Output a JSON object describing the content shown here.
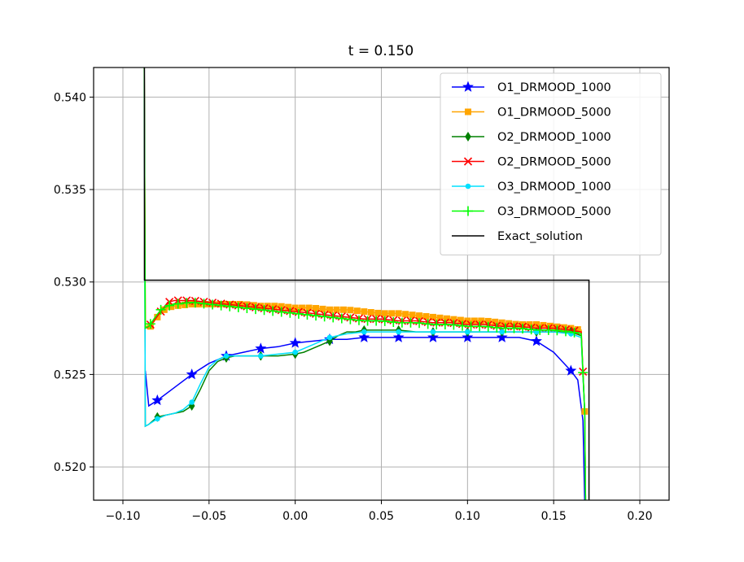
{
  "chart_data": {
    "type": "line",
    "title": "t = 0.150",
    "xlabel": "",
    "ylabel": "",
    "xlim": [
      -0.117,
      0.217
    ],
    "ylim": [
      0.5182,
      0.5416
    ],
    "xticks": [
      -0.1,
      -0.05,
      0.0,
      0.05,
      0.1,
      0.15,
      0.2
    ],
    "xtick_labels": [
      "−0.10",
      "−0.05",
      "0.00",
      "0.05",
      "0.10",
      "0.15",
      "0.20"
    ],
    "yticks": [
      0.52,
      0.525,
      0.53,
      0.535,
      0.54
    ],
    "ytick_labels": [
      "0.520",
      "0.525",
      "0.530",
      "0.535",
      "0.540"
    ],
    "grid": true,
    "legend_position": "top-right",
    "series": [
      {
        "name": "O1_DRMOOD_1000",
        "color": "#0000ff",
        "marker": "star",
        "x": [
          -0.087,
          -0.085,
          -0.08,
          -0.07,
          -0.06,
          -0.05,
          -0.04,
          -0.03,
          -0.02,
          -0.01,
          0.0,
          0.01,
          0.02,
          0.03,
          0.04,
          0.05,
          0.06,
          0.07,
          0.08,
          0.09,
          0.1,
          0.11,
          0.12,
          0.13,
          0.14,
          0.15,
          0.155,
          0.16,
          0.164,
          0.167,
          0.168,
          0.17
        ],
        "y": [
          0.5252,
          0.5233,
          0.5236,
          0.5243,
          0.525,
          0.5256,
          0.526,
          0.5262,
          0.5264,
          0.5265,
          0.5267,
          0.5268,
          0.5269,
          0.5269,
          0.527,
          0.527,
          0.527,
          0.527,
          0.527,
          0.527,
          0.527,
          0.527,
          0.527,
          0.527,
          0.5268,
          0.5262,
          0.5257,
          0.5252,
          0.5247,
          0.5225,
          0.5182,
          0.518
        ],
        "marker_x": [
          -0.08,
          -0.06,
          -0.04,
          -0.02,
          0.0,
          0.02,
          0.04,
          0.06,
          0.08,
          0.1,
          0.12,
          0.14,
          0.16
        ]
      },
      {
        "name": "O1_DRMOOD_5000",
        "color": "#ffa500",
        "marker": "square",
        "x": [
          -0.0876,
          -0.087,
          -0.084,
          -0.08,
          -0.075,
          -0.07,
          -0.06,
          -0.05,
          -0.04,
          -0.03,
          -0.02,
          -0.01,
          0.0,
          0.01,
          0.02,
          0.03,
          0.04,
          0.05,
          0.06,
          0.07,
          0.08,
          0.09,
          0.1,
          0.11,
          0.12,
          0.13,
          0.14,
          0.15,
          0.16,
          0.166,
          0.168,
          0.1685
        ],
        "y": [
          0.5416,
          0.5276,
          0.5276,
          0.5281,
          0.5286,
          0.5287,
          0.5288,
          0.5288,
          0.5288,
          0.5288,
          0.5287,
          0.5287,
          0.5286,
          0.5286,
          0.5285,
          0.5285,
          0.5284,
          0.5283,
          0.5283,
          0.5282,
          0.5281,
          0.528,
          0.5279,
          0.5279,
          0.5278,
          0.5277,
          0.5277,
          0.5276,
          0.5275,
          0.5274,
          0.523,
          0.5182
        ],
        "marker_x": [
          -0.084,
          -0.08,
          -0.076,
          -0.072,
          -0.068,
          -0.064,
          -0.06,
          -0.056,
          -0.052,
          -0.048,
          -0.044,
          -0.04,
          -0.036,
          -0.032,
          -0.028,
          -0.024,
          -0.02,
          -0.016,
          -0.012,
          -0.008,
          -0.004,
          0.0,
          0.004,
          0.008,
          0.012,
          0.016,
          0.02,
          0.024,
          0.028,
          0.032,
          0.036,
          0.04,
          0.044,
          0.048,
          0.052,
          0.056,
          0.06,
          0.064,
          0.068,
          0.072,
          0.076,
          0.08,
          0.084,
          0.088,
          0.092,
          0.096,
          0.1,
          0.104,
          0.108,
          0.112,
          0.116,
          0.12,
          0.124,
          0.128,
          0.132,
          0.136,
          0.14,
          0.144,
          0.148,
          0.152,
          0.156,
          0.16,
          0.164,
          0.168
        ]
      },
      {
        "name": "O2_DRMOOD_1000",
        "color": "#008000",
        "marker": "diamond",
        "x": [
          -0.0876,
          -0.087,
          -0.085,
          -0.08,
          -0.075,
          -0.07,
          -0.065,
          -0.06,
          -0.055,
          -0.05,
          -0.045,
          -0.04,
          -0.035,
          -0.03,
          -0.02,
          -0.01,
          0.0,
          0.005,
          0.01,
          0.015,
          0.02,
          0.025,
          0.03,
          0.035,
          0.04,
          0.05,
          0.06,
          0.07,
          0.08,
          0.09,
          0.1,
          0.11,
          0.12,
          0.13,
          0.14,
          0.15,
          0.16,
          0.166,
          0.168,
          0.1685
        ],
        "y": [
          0.5416,
          0.5222,
          0.5223,
          0.5227,
          0.5228,
          0.5229,
          0.523,
          0.5233,
          0.5242,
          0.5252,
          0.5257,
          0.5259,
          0.526,
          0.526,
          0.526,
          0.526,
          0.5261,
          0.5262,
          0.5264,
          0.5266,
          0.5268,
          0.5271,
          0.5273,
          0.5273,
          0.5274,
          0.5274,
          0.5274,
          0.5273,
          0.5273,
          0.5273,
          0.5273,
          0.5273,
          0.5273,
          0.5273,
          0.5273,
          0.5273,
          0.5273,
          0.5271,
          0.523,
          0.5182
        ],
        "marker_x": [
          -0.08,
          -0.06,
          -0.04,
          -0.02,
          0.0,
          0.02,
          0.04,
          0.06,
          0.08,
          0.1,
          0.12,
          0.14,
          0.16
        ]
      },
      {
        "name": "O2_DRMOOD_5000",
        "color": "#ff0000",
        "marker": "x",
        "x": [
          -0.0876,
          -0.087,
          -0.085,
          -0.082,
          -0.078,
          -0.074,
          -0.07,
          -0.06,
          -0.05,
          -0.04,
          -0.03,
          -0.02,
          -0.01,
          0.0,
          0.01,
          0.02,
          0.03,
          0.04,
          0.05,
          0.06,
          0.07,
          0.08,
          0.09,
          0.1,
          0.11,
          0.12,
          0.13,
          0.14,
          0.15,
          0.16,
          0.166,
          0.168,
          0.1685
        ],
        "y": [
          0.5416,
          0.5275,
          0.5276,
          0.5279,
          0.5284,
          0.5289,
          0.529,
          0.529,
          0.5289,
          0.5288,
          0.5287,
          0.5286,
          0.5285,
          0.5284,
          0.5283,
          0.5282,
          0.5281,
          0.528,
          0.528,
          0.5279,
          0.5279,
          0.5278,
          0.5278,
          0.5277,
          0.5277,
          0.5276,
          0.5276,
          0.5275,
          0.5275,
          0.5274,
          0.5273,
          0.523,
          0.5182
        ],
        "marker_x": [
          -0.084,
          -0.078,
          -0.073,
          -0.068,
          -0.063,
          -0.058,
          -0.053,
          -0.048,
          -0.043,
          -0.038,
          -0.033,
          -0.028,
          -0.023,
          -0.018,
          -0.013,
          -0.008,
          -0.003,
          0.002,
          0.007,
          0.012,
          0.017,
          0.022,
          0.027,
          0.032,
          0.037,
          0.042,
          0.047,
          0.052,
          0.057,
          0.062,
          0.067,
          0.072,
          0.077,
          0.082,
          0.087,
          0.092,
          0.097,
          0.102,
          0.107,
          0.112,
          0.117,
          0.122,
          0.127,
          0.132,
          0.137,
          0.142,
          0.147,
          0.152,
          0.157,
          0.162,
          0.167
        ]
      },
      {
        "name": "O3_DRMOOD_1000",
        "color": "#00e0ff",
        "marker": "circle",
        "x": [
          -0.0876,
          -0.087,
          -0.085,
          -0.08,
          -0.075,
          -0.07,
          -0.065,
          -0.06,
          -0.055,
          -0.05,
          -0.045,
          -0.04,
          -0.035,
          -0.03,
          -0.02,
          -0.01,
          0.0,
          0.005,
          0.01,
          0.015,
          0.02,
          0.025,
          0.03,
          0.04,
          0.05,
          0.06,
          0.07,
          0.08,
          0.09,
          0.1,
          0.11,
          0.12,
          0.13,
          0.14,
          0.15,
          0.16,
          0.166,
          0.168,
          0.1685
        ],
        "y": [
          0.5416,
          0.5222,
          0.5223,
          0.5226,
          0.5228,
          0.5229,
          0.5231,
          0.5235,
          0.5245,
          0.5254,
          0.5258,
          0.526,
          0.526,
          0.526,
          0.526,
          0.5261,
          0.5262,
          0.5264,
          0.5266,
          0.5268,
          0.527,
          0.5271,
          0.5272,
          0.5273,
          0.5273,
          0.5273,
          0.5273,
          0.5273,
          0.5273,
          0.5273,
          0.5273,
          0.5273,
          0.5273,
          0.5273,
          0.5273,
          0.5272,
          0.527,
          0.523,
          0.5182
        ],
        "marker_x": [
          -0.08,
          -0.06,
          -0.04,
          -0.02,
          0.0,
          0.02,
          0.04,
          0.06,
          0.08,
          0.1,
          0.12,
          0.14,
          0.16
        ]
      },
      {
        "name": "O3_DRMOOD_5000",
        "color": "#00ff00",
        "marker": "plus",
        "x": [
          -0.0876,
          -0.087,
          -0.085,
          -0.082,
          -0.078,
          -0.074,
          -0.07,
          -0.06,
          -0.05,
          -0.04,
          -0.03,
          -0.02,
          -0.01,
          0.0,
          0.01,
          0.02,
          0.03,
          0.04,
          0.05,
          0.06,
          0.07,
          0.08,
          0.09,
          0.1,
          0.11,
          0.12,
          0.13,
          0.14,
          0.15,
          0.16,
          0.166,
          0.168,
          0.1685
        ],
        "y": [
          0.5416,
          0.5275,
          0.5276,
          0.528,
          0.5285,
          0.5287,
          0.5288,
          0.5289,
          0.5288,
          0.5287,
          0.5286,
          0.5285,
          0.5284,
          0.5283,
          0.5282,
          0.5281,
          0.528,
          0.5279,
          0.5279,
          0.5278,
          0.5278,
          0.5277,
          0.5277,
          0.5276,
          0.5276,
          0.5275,
          0.5275,
          0.5274,
          0.5274,
          0.5273,
          0.5272,
          0.523,
          0.5182
        ],
        "marker_x": [
          -0.084,
          -0.078,
          -0.073,
          -0.068,
          -0.063,
          -0.058,
          -0.053,
          -0.048,
          -0.043,
          -0.038,
          -0.033,
          -0.028,
          -0.023,
          -0.018,
          -0.013,
          -0.008,
          -0.003,
          0.002,
          0.007,
          0.012,
          0.017,
          0.022,
          0.027,
          0.032,
          0.037,
          0.042,
          0.047,
          0.052,
          0.057,
          0.062,
          0.067,
          0.072,
          0.077,
          0.082,
          0.087,
          0.092,
          0.097,
          0.102,
          0.107,
          0.112,
          0.117,
          0.122,
          0.127,
          0.132,
          0.137,
          0.142,
          0.147,
          0.152,
          0.157,
          0.162,
          0.167
        ]
      },
      {
        "name": "Exact_solution",
        "color": "#000000",
        "marker": "none",
        "x": [
          -0.0875,
          -0.0875,
          0.1705,
          0.1705
        ],
        "y": [
          0.5416,
          0.5301,
          0.5301,
          0.5182
        ]
      }
    ]
  }
}
